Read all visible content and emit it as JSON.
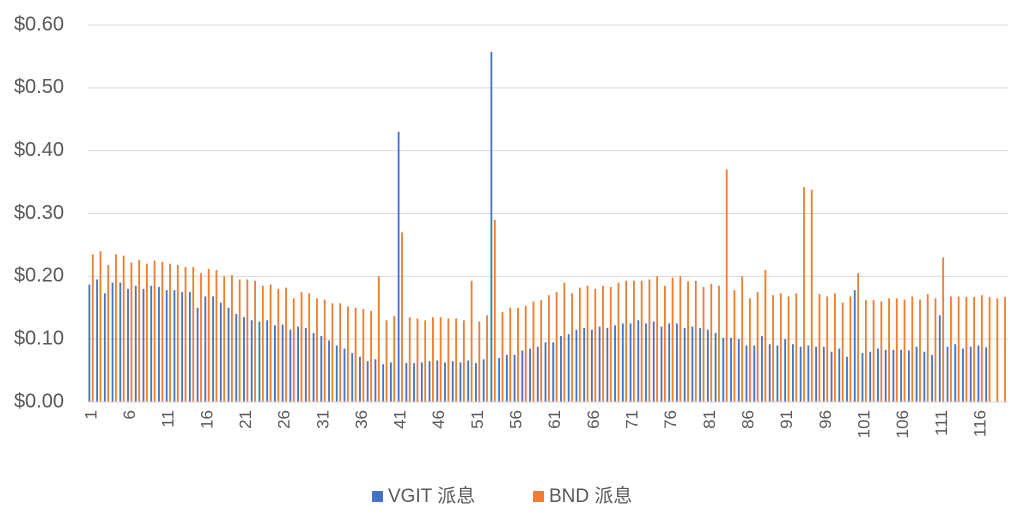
{
  "chart_data": {
    "type": "bar",
    "categories": [
      "1",
      null,
      null,
      null,
      null,
      "6",
      null,
      null,
      null,
      null,
      "11",
      null,
      null,
      null,
      null,
      "16",
      null,
      null,
      null,
      null,
      "21",
      null,
      null,
      null,
      null,
      "26",
      null,
      null,
      null,
      null,
      "31",
      null,
      null,
      null,
      null,
      "36",
      null,
      null,
      null,
      null,
      "41",
      null,
      null,
      null,
      null,
      "46",
      null,
      null,
      null,
      null,
      "51",
      null,
      null,
      null,
      null,
      "56",
      null,
      null,
      null,
      null,
      "61",
      null,
      null,
      null,
      null,
      "66",
      null,
      null,
      null,
      null,
      "71",
      null,
      null,
      null,
      null,
      "76",
      null,
      null,
      null,
      null,
      "81",
      null,
      null,
      null,
      null,
      "86",
      null,
      null,
      null,
      null,
      "91",
      null,
      null,
      null,
      null,
      "96",
      null,
      null,
      null,
      null,
      "101",
      null,
      null,
      null,
      null,
      "106",
      null,
      null,
      null,
      null,
      "111",
      null,
      null,
      null,
      null,
      "116",
      null,
      null,
      null
    ],
    "series": [
      {
        "name": "VGIT 派息",
        "color": "#4472c4",
        "values": [
          0.187,
          0.195,
          0.173,
          0.19,
          0.19,
          0.18,
          0.185,
          0.18,
          0.185,
          0.183,
          0.178,
          0.178,
          0.175,
          0.175,
          0.15,
          0.168,
          0.168,
          0.158,
          0.15,
          0.14,
          0.135,
          0.13,
          0.128,
          0.13,
          0.122,
          0.123,
          0.115,
          0.12,
          0.118,
          0.11,
          0.105,
          0.098,
          0.09,
          0.085,
          0.078,
          0.072,
          0.065,
          0.068,
          0.06,
          0.063,
          0.43,
          0.062,
          0.062,
          0.063,
          0.065,
          0.066,
          0.063,
          0.065,
          0.063,
          0.066,
          0.062,
          0.068,
          0.557,
          0.07,
          0.075,
          0.075,
          0.082,
          0.085,
          0.088,
          0.095,
          0.095,
          0.105,
          0.108,
          0.115,
          0.118,
          0.115,
          0.12,
          0.118,
          0.122,
          0.125,
          0.125,
          0.13,
          0.125,
          0.128,
          0.12,
          0.125,
          0.125,
          0.118,
          0.12,
          0.118,
          0.115,
          0.11,
          0.102,
          0.102,
          0.1,
          0.09,
          0.09,
          0.105,
          0.092,
          0.09,
          0.1,
          0.092,
          0.088,
          0.09,
          0.088,
          0.088,
          0.08,
          0.085,
          0.072,
          0.178,
          0.078,
          0.08,
          0.085,
          0.083,
          0.083,
          0.083,
          0.082,
          0.088,
          0.08,
          0.075,
          0.138,
          0.088,
          0.092,
          0.085,
          0.088,
          0.09,
          0.087,
          null,
          null
        ]
      },
      {
        "name": "BND 派息",
        "color": "#ed7d31",
        "values": [
          0.235,
          0.24,
          0.218,
          0.235,
          0.233,
          0.222,
          0.226,
          0.22,
          0.225,
          0.223,
          0.22,
          0.218,
          0.215,
          0.215,
          0.205,
          0.212,
          0.21,
          0.2,
          0.202,
          0.195,
          0.195,
          0.193,
          0.185,
          0.187,
          0.18,
          0.182,
          0.165,
          0.175,
          0.173,
          0.165,
          0.163,
          0.157,
          0.157,
          0.152,
          0.15,
          0.148,
          0.145,
          0.2,
          0.13,
          0.137,
          0.27,
          0.135,
          0.133,
          0.13,
          0.135,
          0.135,
          0.133,
          0.133,
          0.13,
          0.193,
          0.128,
          0.138,
          0.29,
          0.143,
          0.15,
          0.15,
          0.153,
          0.16,
          0.162,
          0.17,
          0.175,
          0.19,
          0.173,
          0.182,
          0.185,
          0.18,
          0.185,
          0.183,
          0.19,
          0.193,
          0.193,
          0.193,
          0.195,
          0.2,
          0.185,
          0.198,
          0.2,
          0.192,
          0.193,
          0.183,
          0.188,
          0.185,
          0.37,
          0.178,
          0.2,
          0.165,
          0.175,
          0.21,
          0.17,
          0.173,
          0.168,
          0.173,
          0.342,
          0.338,
          0.172,
          0.168,
          0.173,
          0.158,
          0.168,
          0.205,
          0.162,
          0.162,
          0.16,
          0.165,
          0.165,
          0.163,
          0.168,
          0.163,
          0.172,
          0.165,
          0.23,
          0.168,
          0.168,
          0.167,
          0.167,
          0.17,
          0.167,
          0.165,
          0.167
        ]
      }
    ],
    "ylim": [
      0,
      0.6
    ],
    "yticks": [
      {
        "value": 0,
        "label": "$0.00"
      },
      {
        "value": 0.1,
        "label": "$0.10"
      },
      {
        "value": 0.2,
        "label": "$0.20"
      },
      {
        "value": 0.3,
        "label": "$0.30"
      },
      {
        "value": 0.4,
        "label": "$0.40"
      },
      {
        "value": 0.5,
        "label": "$0.50"
      },
      {
        "value": 0.6,
        "label": "$0.60"
      }
    ],
    "grid": true,
    "legend": "bottom"
  }
}
